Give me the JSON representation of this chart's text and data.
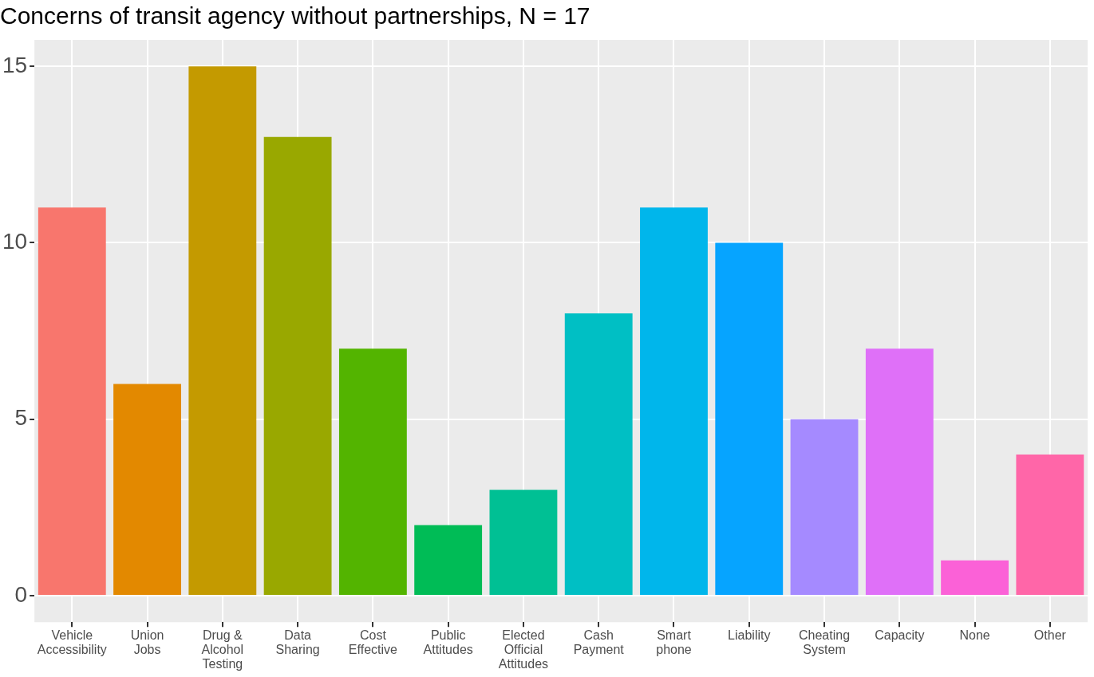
{
  "chart_data": {
    "type": "bar",
    "title": "Concerns of transit agency without partnerships, N = 17",
    "categories": [
      "Vehicle\nAccessibility",
      "Union\nJobs",
      "Drug &\nAlcohol\nTesting",
      "Data\nSharing",
      "Cost\nEffective",
      "Public\nAttitudes",
      "Elected\nOfficial\nAttitudes",
      "Cash\nPayment",
      "Smart\nphone",
      "Liability",
      "Cheating\nSystem",
      "Capacity",
      "None",
      "Other"
    ],
    "values": [
      11,
      6,
      15,
      13,
      7,
      2,
      3,
      8,
      11,
      10,
      5,
      7,
      1,
      4
    ],
    "colors": [
      "#f8766d",
      "#e38900",
      "#c49a00",
      "#99a800",
      "#53b400",
      "#00bc56",
      "#00c094",
      "#00bfc4",
      "#00b6eb",
      "#06a4ff",
      "#a58aff",
      "#df70f8",
      "#fb61d7",
      "#ff66a8"
    ],
    "ylim": [
      -0.75,
      15.75
    ],
    "yticks": [
      0,
      5,
      10,
      15
    ],
    "grid": true
  }
}
